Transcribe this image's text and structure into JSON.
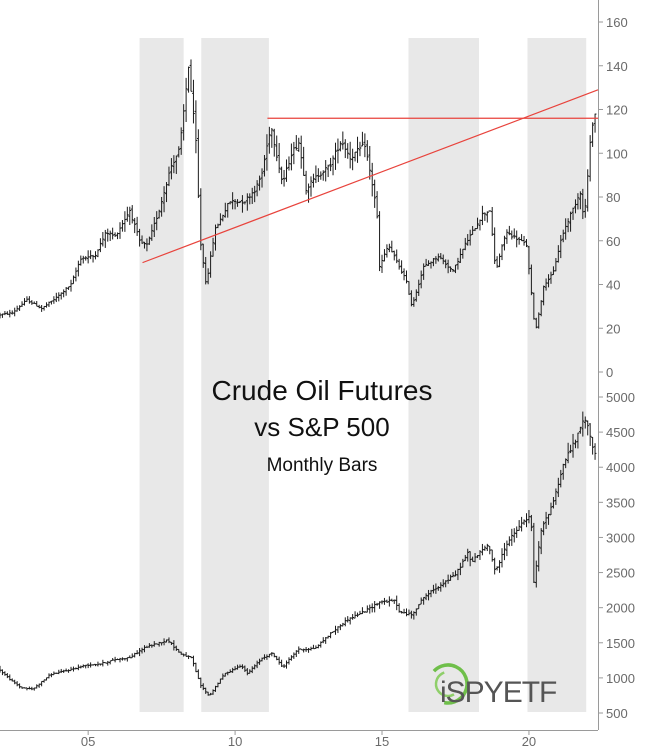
{
  "chart_data": {
    "type": "ohlc",
    "title": "Crude Oil Futures",
    "subtitle": "vs S&P 500",
    "subtitle2": "Monthly Bars",
    "watermark": "iSPYETF",
    "x_tick_labels": [
      "05",
      "10",
      "15",
      "20"
    ],
    "x_ticks": [
      2005,
      2010,
      2015,
      2020
    ],
    "xlim": [
      2002.0,
      2022.35
    ],
    "shaded_periods": [
      [
        2006.75,
        2008.25
      ],
      [
        2008.85,
        2011.15
      ],
      [
        2015.9,
        2018.3
      ],
      [
        2019.95,
        2021.95
      ]
    ],
    "panels": [
      {
        "name": "Crude Oil Futures",
        "ylim": [
          0,
          160
        ],
        "y_ticks": [
          0,
          20,
          40,
          60,
          80,
          100,
          120,
          140,
          160
        ],
        "series_points": [
          [
            2002.0,
            26
          ],
          [
            2002.5,
            27
          ],
          [
            2003.0,
            33
          ],
          [
            2003.5,
            29
          ],
          [
            2004.0,
            34
          ],
          [
            2004.5,
            40
          ],
          [
            2004.83,
            52
          ],
          [
            2005.3,
            53
          ],
          [
            2005.7,
            64
          ],
          [
            2006.0,
            62
          ],
          [
            2006.5,
            74
          ],
          [
            2006.85,
            59
          ],
          [
            2007.1,
            58
          ],
          [
            2007.5,
            74
          ],
          [
            2007.9,
            94
          ],
          [
            2008.2,
            102
          ],
          [
            2008.5,
            140
          ],
          [
            2008.75,
            105
          ],
          [
            2008.9,
            60
          ],
          [
            2009.1,
            40
          ],
          [
            2009.4,
            65
          ],
          [
            2009.9,
            78
          ],
          [
            2010.4,
            78
          ],
          [
            2010.8,
            84
          ],
          [
            2011.0,
            91
          ],
          [
            2011.3,
            113
          ],
          [
            2011.7,
            86
          ],
          [
            2012.0,
            100
          ],
          [
            2012.25,
            105
          ],
          [
            2012.5,
            84
          ],
          [
            2012.9,
            90
          ],
          [
            2013.3,
            94
          ],
          [
            2013.7,
            106
          ],
          [
            2014.0,
            98
          ],
          [
            2014.5,
            104
          ],
          [
            2014.9,
            75
          ],
          [
            2015.0,
            48
          ],
          [
            2015.3,
            58
          ],
          [
            2015.9,
            42
          ],
          [
            2016.1,
            30
          ],
          [
            2016.5,
            48
          ],
          [
            2017.0,
            53
          ],
          [
            2017.5,
            46
          ],
          [
            2017.9,
            58
          ],
          [
            2018.5,
            72
          ],
          [
            2018.75,
            74
          ],
          [
            2018.95,
            46
          ],
          [
            2019.3,
            64
          ],
          [
            2019.8,
            60
          ],
          [
            2020.0,
            58
          ],
          [
            2020.3,
            18
          ],
          [
            2020.6,
            40
          ],
          [
            2020.9,
            45
          ],
          [
            2021.2,
            62
          ],
          [
            2021.5,
            72
          ],
          [
            2021.85,
            83
          ],
          [
            2021.95,
            68
          ],
          [
            2022.1,
            92
          ],
          [
            2022.2,
            110
          ],
          [
            2022.3,
            118
          ]
        ],
        "annotations": [
          {
            "type": "trendline",
            "points": [
              [
                2006.85,
                50
              ],
              [
                2022.35,
                129
              ]
            ],
            "color": "#e8433c"
          },
          {
            "type": "hline",
            "y": 116,
            "x_range": [
              2011.1,
              2022.35
            ],
            "color": "#e8433c"
          }
        ]
      },
      {
        "name": "S&P 500",
        "ylim": [
          400,
          5000
        ],
        "y_ticks": [
          500,
          1000,
          1500,
          2000,
          2500,
          3000,
          3500,
          4000,
          4500,
          5000
        ],
        "series_points": [
          [
            2002.0,
            1140
          ],
          [
            2002.5,
            950
          ],
          [
            2002.8,
            860
          ],
          [
            2003.2,
            840
          ],
          [
            2003.8,
            1050
          ],
          [
            2004.5,
            1120
          ],
          [
            2005.0,
            1180
          ],
          [
            2005.5,
            1200
          ],
          [
            2006.0,
            1260
          ],
          [
            2006.5,
            1290
          ],
          [
            2007.0,
            1430
          ],
          [
            2007.8,
            1540
          ],
          [
            2008.2,
            1350
          ],
          [
            2008.6,
            1280
          ],
          [
            2008.9,
            900
          ],
          [
            2009.2,
            740
          ],
          [
            2009.7,
            1050
          ],
          [
            2010.3,
            1180
          ],
          [
            2010.5,
            1060
          ],
          [
            2011.0,
            1280
          ],
          [
            2011.35,
            1350
          ],
          [
            2011.7,
            1150
          ],
          [
            2012.2,
            1400
          ],
          [
            2012.8,
            1420
          ],
          [
            2013.3,
            1620
          ],
          [
            2013.9,
            1830
          ],
          [
            2014.5,
            1950
          ],
          [
            2015.0,
            2080
          ],
          [
            2015.5,
            2100
          ],
          [
            2015.7,
            1930
          ],
          [
            2016.1,
            1900
          ],
          [
            2016.5,
            2150
          ],
          [
            2017.0,
            2300
          ],
          [
            2017.6,
            2480
          ],
          [
            2018.0,
            2780
          ],
          [
            2018.1,
            2650
          ],
          [
            2018.7,
            2900
          ],
          [
            2018.95,
            2500
          ],
          [
            2019.3,
            2900
          ],
          [
            2019.9,
            3230
          ],
          [
            2020.15,
            3300
          ],
          [
            2020.25,
            2350
          ],
          [
            2020.5,
            3100
          ],
          [
            2020.9,
            3500
          ],
          [
            2021.3,
            4100
          ],
          [
            2021.7,
            4400
          ],
          [
            2021.95,
            4700
          ],
          [
            2022.15,
            4500
          ],
          [
            2022.3,
            4200
          ]
        ]
      }
    ]
  }
}
